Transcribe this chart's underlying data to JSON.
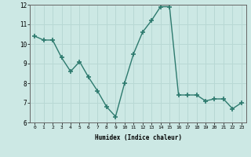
{
  "x": [
    0,
    1,
    2,
    3,
    4,
    5,
    6,
    7,
    8,
    9,
    10,
    11,
    12,
    13,
    14,
    15,
    16,
    17,
    18,
    19,
    20,
    21,
    22,
    23
  ],
  "y": [
    10.4,
    10.2,
    10.2,
    9.3,
    8.6,
    9.1,
    8.3,
    7.6,
    6.8,
    6.3,
    8.0,
    9.5,
    10.6,
    11.2,
    11.9,
    11.9,
    7.4,
    7.4,
    7.4,
    7.1,
    7.2,
    7.2,
    6.7,
    7.0
  ],
  "xlabel": "Humidex (Indice chaleur)",
  "ylim": [
    6,
    12
  ],
  "xlim": [
    -0.5,
    23.5
  ],
  "yticks": [
    6,
    7,
    8,
    9,
    10,
    11,
    12
  ],
  "xticks": [
    0,
    1,
    2,
    3,
    4,
    5,
    6,
    7,
    8,
    9,
    10,
    11,
    12,
    13,
    14,
    15,
    16,
    17,
    18,
    19,
    20,
    21,
    22,
    23
  ],
  "line_color": "#2d7a6e",
  "marker_color": "#2d7a6e",
  "bg_color": "#cce8e4",
  "grid_color": "#b8d8d4",
  "plot_bg": "#cce8e4"
}
